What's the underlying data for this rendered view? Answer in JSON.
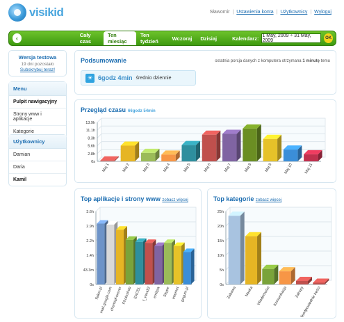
{
  "header": {
    "logo_text": "visikid",
    "user_name": "Sławomir",
    "links": [
      "Ustawienia konta",
      "Użytkownicy",
      "Wyloguj"
    ]
  },
  "navbar": {
    "back_icon": "chevron-left-icon",
    "tabs": [
      "Cały czas",
      "Ten miesiąc",
      "Ten tydzień",
      "Wczoraj",
      "Dzisiaj"
    ],
    "active_tab": "Ten miesiąc",
    "calendar_label": "Kalendarz:",
    "date_range": "1 May, 2009 ÷ 31 May, 2009",
    "ok_label": "OK"
  },
  "sidebar": {
    "trial": {
      "title": "Wersja testowa",
      "days_left": "19 dni pozostało",
      "subscribe": "Subskrybuj teraz!"
    },
    "menu": {
      "title": "Menu",
      "items": [
        "Pulpit nawigacyjny",
        "Strony www i aplikacje",
        "Kategorie"
      ],
      "active": "Pulpit nawigacyjny"
    },
    "users": {
      "title": "Użytkownicy",
      "items": [
        "Damian",
        "Daria",
        "Kamil"
      ],
      "active": "Kamil"
    }
  },
  "summary": {
    "title": "Podsumowanie",
    "note_prefix": "ostatnia porcja danych z komputera otrzymana",
    "note_value": "1 minutę",
    "note_suffix": "temu",
    "avg_value": "6godz 4min",
    "avg_label": "średnio dziennie",
    "icon": "sun-icon"
  },
  "time_overview": {
    "title": "Przegląd czasu",
    "subtitle": "66godz 54min",
    "chart_data": {
      "type": "bar",
      "categories": [
        "Maj 1",
        "Maj 2",
        "Maj 3",
        "Maj 4",
        "Maj 5",
        "Maj 6",
        "Maj 7",
        "Maj 8",
        "Maj 9",
        "Maj 10",
        "Maj 11"
      ],
      "values_hours": [
        0.3,
        5.6,
        3.0,
        2.4,
        5.8,
        9.5,
        9.8,
        11.7,
        8.0,
        4.2,
        2.5
      ],
      "ytick_labels": [
        "0s",
        "2.8h",
        "5.6h",
        "8.3h",
        "11.1h",
        "13.9h"
      ],
      "ylim": [
        0,
        13.9
      ],
      "colors": [
        "#c0504d",
        "#e6b524",
        "#9bbb59",
        "#f79646",
        "#2e8f9e",
        "#c0504d",
        "#8064a2",
        "#6b8e23",
        "#e6c229",
        "#3b8ed8",
        "#c0304d"
      ]
    }
  },
  "top_apps": {
    "title": "Top aplikacje i strony www",
    "more_link": "zobacz więcej",
    "chart_data": {
      "type": "bar",
      "categories": [
        "flaker.pl",
        "mail.google.com",
        "chemiaForever",
        "Photoshop",
        "EXCEL",
        "f_view32",
        "emilpia",
        "Skype",
        "Internet",
        "gogum.pl"
      ],
      "values_hours": [
        3.0,
        2.95,
        2.7,
        2.2,
        2.1,
        2.05,
        1.9,
        2.05,
        1.9,
        1.6
      ],
      "ytick_labels": [
        "0s",
        "43.3m",
        "1.4h",
        "2.2h",
        "2.9h",
        "3.6h"
      ],
      "ylim": [
        0,
        3.6
      ],
      "colors": [
        "#6d93c8",
        "#d9d9d9",
        "#e6b524",
        "#7aa33a",
        "#2e8f9e",
        "#c0504d",
        "#8064a2",
        "#9bbb59",
        "#e6c229",
        "#3b8ed8"
      ]
    }
  },
  "top_categories": {
    "title": "Top kategorie",
    "more_link": "zobacz więcej",
    "chart_data": {
      "type": "bar",
      "categories": [
        "Zabawa",
        "Nauka",
        "Wiadomości",
        "Komunikacja",
        "Zakupy",
        "Nieodpowiednie treści"
      ],
      "values_hours": [
        23.5,
        16.5,
        5.3,
        4.5,
        1.2,
        0.6
      ],
      "ytick_labels": [
        "0s",
        "5h",
        "10h",
        "15h",
        "20h",
        "25h"
      ],
      "ylim": [
        0,
        25
      ],
      "colors": [
        "#a8c3e0",
        "#e6b524",
        "#7aa33a",
        "#f79646",
        "#c0504d",
        "#c0504d"
      ]
    }
  }
}
